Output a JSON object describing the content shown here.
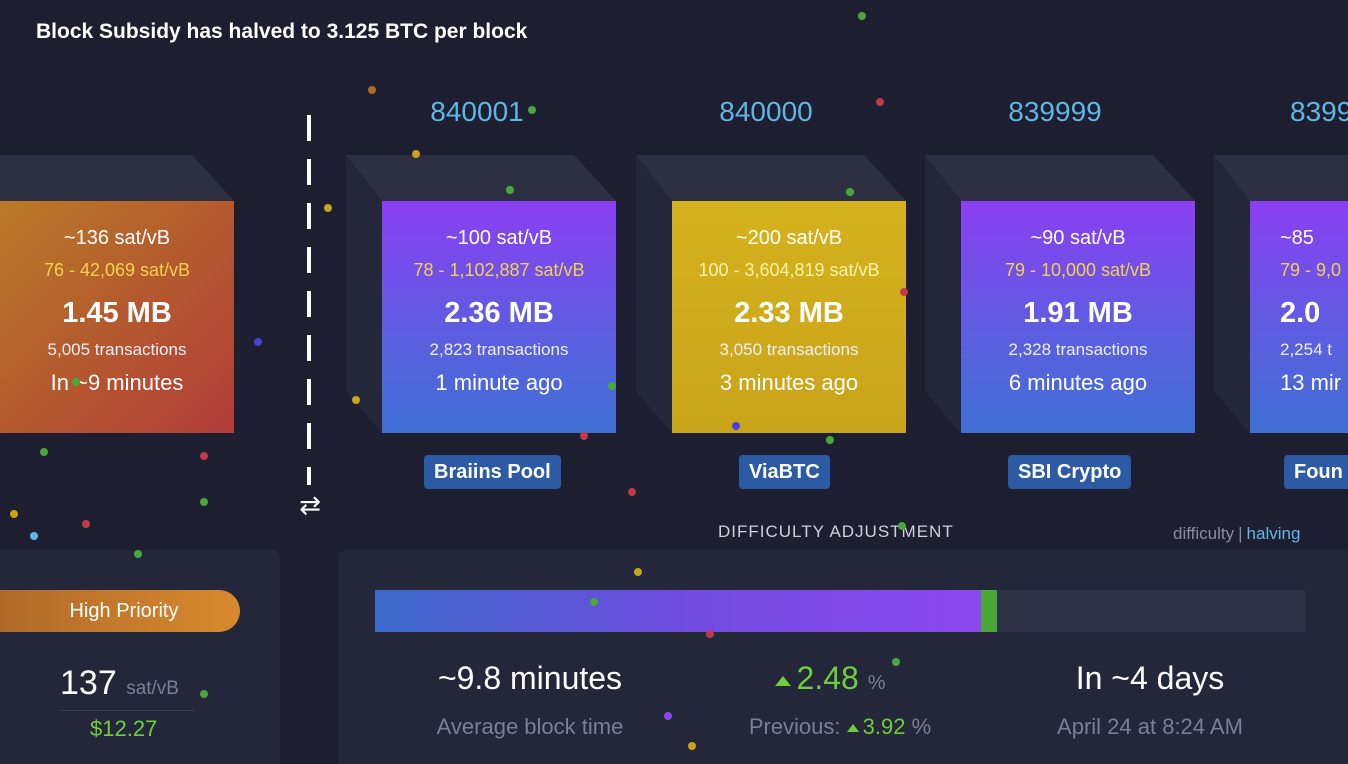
{
  "banner": "Block Subsidy has halved to 3.125 BTC per block",
  "pending_block": {
    "fee": "~136 sat/vB",
    "range": "76 - 42,069 sat/vB",
    "size": "1.45 MB",
    "txs": "5,005 transactions",
    "time": "In ~9 minutes"
  },
  "blocks": [
    {
      "height": "840001",
      "fee": "~100 sat/vB",
      "range": "78 - 1,102,887 sat/vB",
      "size": "2.36 MB",
      "txs": "2,823 transactions",
      "time": "1 minute ago",
      "pool": "Braiins Pool"
    },
    {
      "height": "840000",
      "fee": "~200 sat/vB",
      "range": "100 - 3,604,819 sat/vB",
      "size": "2.33 MB",
      "txs": "3,050 transactions",
      "time": "3 minutes ago",
      "pool": "ViaBTC"
    },
    {
      "height": "839999",
      "fee": "~90 sat/vB",
      "range": "79 - 10,000 sat/vB",
      "size": "1.91 MB",
      "txs": "2,328 transactions",
      "time": "6 minutes ago",
      "pool": "SBI Crypto"
    },
    {
      "height": "8399",
      "fee": "~85",
      "range": "79 - 9,0",
      "size": "2.0",
      "txs": "2,254 t",
      "time": "13 mir",
      "pool": "Foun"
    }
  ],
  "difficulty": {
    "title": "DIFFICULTY ADJUSTMENT",
    "link_difficulty": "difficulty",
    "link_separator": "|",
    "link_halving": "halving",
    "progress_fraction": 0.652,
    "avg_block_time": "~9.8 minutes",
    "avg_block_time_label": "Average block time",
    "change": "2.48",
    "change_unit": "%",
    "previous_label": "Previous:",
    "previous_value": "3.92",
    "previous_unit": "%",
    "eta": "In ~4 days",
    "eta_date": "April 24 at 8:24 AM"
  },
  "fees": {
    "priority_label": "High Priority",
    "priority_value": "137",
    "priority_unit": "sat/vB",
    "priority_usd": "$12.27"
  },
  "colors": {
    "purple_block": "#8a3ff2",
    "gold_block": "#d5b21d",
    "height_blue": "#5fb6e5",
    "green": "#6fcf3a"
  }
}
